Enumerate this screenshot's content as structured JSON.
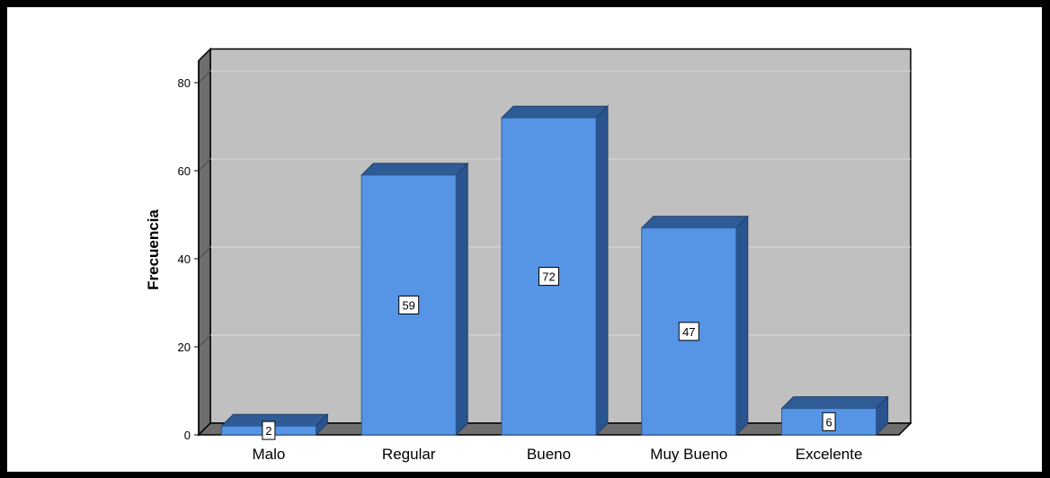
{
  "chart_data": {
    "type": "bar",
    "title": "",
    "xlabel": "",
    "ylabel": "Frecuencia",
    "categories": [
      "Malo",
      "Regular",
      "Bueno",
      "Muy Bueno",
      "Excelente"
    ],
    "values": [
      2,
      59,
      72,
      47,
      6
    ],
    "data_labels": [
      "2",
      "59",
      "72",
      "47",
      "6"
    ],
    "ylim": [
      0,
      85
    ],
    "yticks": [
      0,
      20,
      40,
      60,
      80
    ],
    "ytick_labels": [
      "0",
      "20",
      "40",
      "60",
      "80"
    ],
    "grid": true,
    "style": "3d",
    "colors": {
      "bar_front": "#5695e6",
      "bar_top": "#2f5b96",
      "bar_side": "#2a5490",
      "plot_back": "#c0c0c0",
      "plot_side_wall": "#6e6e6e",
      "plot_floor": "#6e6e6e",
      "gridline": "#d8d8d8",
      "frame": "#000000"
    }
  }
}
